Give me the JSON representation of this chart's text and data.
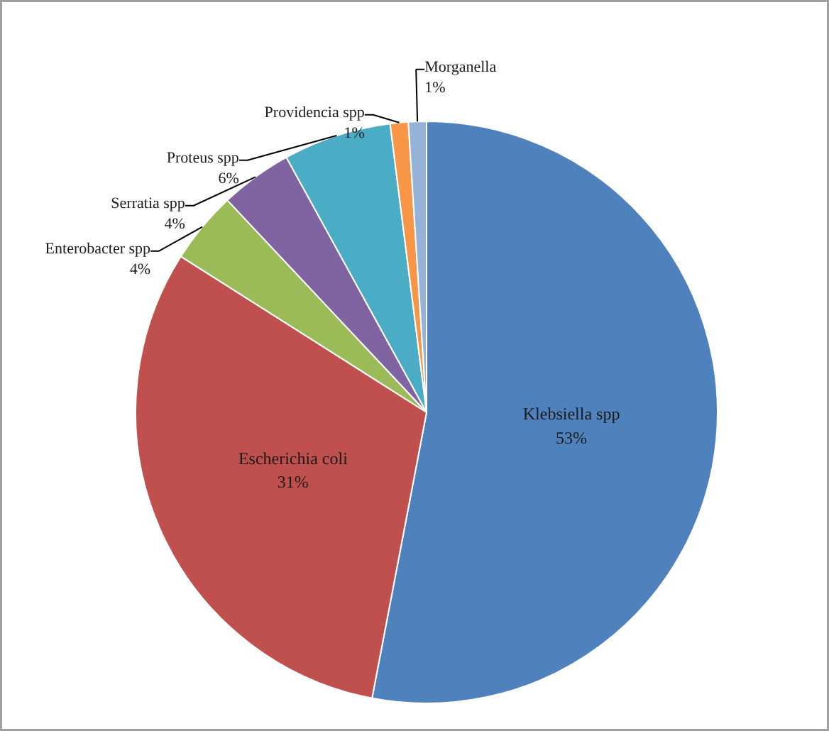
{
  "chart_data": {
    "type": "pie",
    "categories": [
      "Klebsiella spp",
      "Escherichia coli",
      "Enterobacter spp",
      "Serratia spp",
      "Proteus spp",
      "Providencia spp",
      "Morganella"
    ],
    "values": [
      53,
      31,
      4,
      4,
      6,
      1,
      1
    ],
    "colors": [
      "#4f81bd",
      "#c0504d",
      "#9bbb59",
      "#8064a2",
      "#4bacc6",
      "#f79646",
      "#95b3d7"
    ],
    "value_labels": [
      "53%",
      "31%",
      "4%",
      "4%",
      "6%",
      "1%",
      "1%"
    ]
  }
}
